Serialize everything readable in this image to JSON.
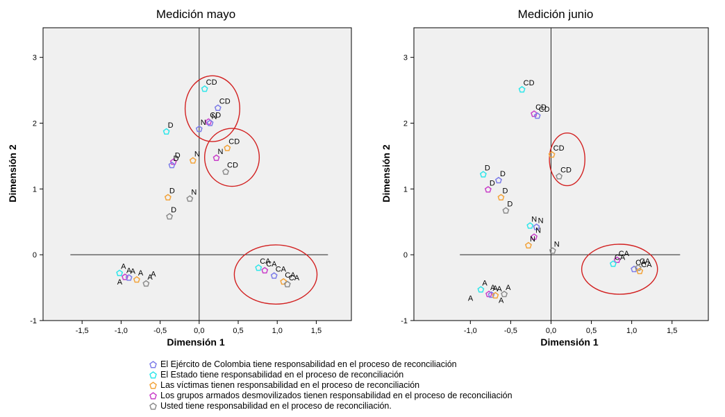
{
  "colors": {
    "ejercito": "#7c7ce8",
    "estado": "#2ee6ea",
    "victimas": "#f2a33a",
    "grupos": "#c93fc9",
    "usted": "#8c8c8c",
    "circle": "#d22020",
    "panel_bg": "#f0f0f0"
  },
  "legend": [
    {
      "key": "ejercito",
      "label": "El Ejército de Colombia tiene responsabilidad en el proceso de reconciliación"
    },
    {
      "key": "estado",
      "label": "El Estado tiene responsabilidad en el proceso de reconciliación"
    },
    {
      "key": "victimas",
      "label": "Las víctimas tienen responsabilidad en el proceso de reconciliación"
    },
    {
      "key": "grupos",
      "label": "Los grupos armados desmovilizados tienen responsabilidad en el proceso de reconciliación"
    },
    {
      "key": "usted",
      "label": "Usted tiene responsabilidad en el proceso de reconciliación."
    }
  ],
  "chart_data": [
    {
      "type": "scatter",
      "title": "Medición mayo",
      "xlabel": "Dimensión 1",
      "ylabel": "Dimensión 2",
      "xlim": [
        -2.0,
        1.95
      ],
      "ylim": [
        -1,
        3.45
      ],
      "x_ticks": [
        -1.5,
        -1.0,
        -0.5,
        0.0,
        0.5,
        1.0,
        1.5
      ],
      "x_tick_labels": [
        "-1,5",
        "-1,0",
        "-0,5",
        "0,0",
        "0,5",
        "1,0",
        "1,5"
      ],
      "y_ticks": [
        -1,
        0,
        1,
        2,
        3
      ],
      "y_tick_labels": [
        "-1",
        "0",
        "1",
        "2",
        "3"
      ],
      "hline_x_range": [
        -1.65,
        1.65
      ],
      "points": [
        {
          "series": "estado",
          "x": 0.07,
          "y": 2.52,
          "label": "CD"
        },
        {
          "series": "ejercito",
          "x": 0.24,
          "y": 2.23,
          "label": "CD"
        },
        {
          "series": "grupos",
          "x": 0.12,
          "y": 2.02,
          "label": "CD"
        },
        {
          "series": "ejercito",
          "x": 0.14,
          "y": 2.0,
          "label": "N"
        },
        {
          "series": "ejercito",
          "x": 0.0,
          "y": 1.91,
          "label": "N"
        },
        {
          "series": "estado",
          "x": -0.42,
          "y": 1.87,
          "label": "D"
        },
        {
          "series": "victimas",
          "x": 0.36,
          "y": 1.62,
          "label": "CD"
        },
        {
          "series": "grupos",
          "x": 0.22,
          "y": 1.47,
          "label": "N"
        },
        {
          "series": "usted",
          "x": 0.34,
          "y": 1.26,
          "label": "CD"
        },
        {
          "series": "victimas",
          "x": -0.08,
          "y": 1.43,
          "label": "N"
        },
        {
          "series": "grupos",
          "x": -0.33,
          "y": 1.41,
          "label": "D"
        },
        {
          "series": "ejercito",
          "x": -0.35,
          "y": 1.36,
          "label": "D"
        },
        {
          "series": "victimas",
          "x": -0.4,
          "y": 0.87,
          "label": "D"
        },
        {
          "series": "usted",
          "x": -0.12,
          "y": 0.85,
          "label": "N"
        },
        {
          "series": "usted",
          "x": -0.38,
          "y": 0.58,
          "label": "D"
        },
        {
          "series": "estado",
          "x": -1.02,
          "y": -0.28,
          "label": "A"
        },
        {
          "series": "grupos",
          "x": -0.95,
          "y": -0.34,
          "label": "A"
        },
        {
          "series": "ejercito",
          "x": -0.9,
          "y": -0.35,
          "label": "A"
        },
        {
          "series": "victimas",
          "x": -0.8,
          "y": -0.38,
          "label": "A"
        },
        {
          "series": "usted",
          "x": -0.68,
          "y": -0.44,
          "label": "A"
        },
        {
          "series": "estado",
          "x": 0.76,
          "y": -0.2,
          "label": "CA"
        },
        {
          "series": "grupos",
          "x": 0.84,
          "y": -0.24,
          "label": "CA"
        },
        {
          "series": "ejercito",
          "x": 0.96,
          "y": -0.32,
          "label": "CA"
        },
        {
          "series": "victimas",
          "x": 1.08,
          "y": -0.41,
          "label": "CA"
        },
        {
          "series": "usted",
          "x": 1.13,
          "y": -0.45,
          "label": "CA"
        }
      ],
      "extra_labels": [
        {
          "text": "A",
          "x": -1.05,
          "y": -0.45
        },
        {
          "text": "A",
          "x": -0.62,
          "y": -0.33
        }
      ],
      "circles": [
        {
          "cx": 0.17,
          "cy": 2.22,
          "rx": 0.35,
          "ry": 0.5
        },
        {
          "cx": 0.42,
          "cy": 1.48,
          "rx": 0.35,
          "ry": 0.44
        },
        {
          "cx": 0.98,
          "cy": -0.3,
          "rx": 0.53,
          "ry": 0.45
        }
      ]
    },
    {
      "type": "scatter",
      "title": "Medición junio",
      "xlabel": "Dimensión 1",
      "ylabel": "Dimensión 2",
      "xlim": [
        -1.7,
        1.95
      ],
      "ylim": [
        -1,
        3.45
      ],
      "x_ticks": [
        -1.0,
        -0.5,
        0.0,
        0.5,
        1.0,
        1.5
      ],
      "x_tick_labels": [
        "-1,0",
        "-0,5",
        "0,0",
        "0,5",
        "1,0",
        "1,5"
      ],
      "y_ticks": [
        -1,
        0,
        1,
        2,
        3
      ],
      "y_tick_labels": [
        "-1",
        "0",
        "1",
        "2",
        "3"
      ],
      "hline_x_range": [
        -1.13,
        1.6
      ],
      "points": [
        {
          "series": "estado",
          "x": -0.36,
          "y": 2.51,
          "label": "CD"
        },
        {
          "series": "grupos",
          "x": -0.21,
          "y": 2.14,
          "label": "CD"
        },
        {
          "series": "ejercito",
          "x": -0.17,
          "y": 2.11,
          "label": "CD"
        },
        {
          "series": "victimas",
          "x": 0.01,
          "y": 1.52,
          "label": "CD"
        },
        {
          "series": "usted",
          "x": 0.1,
          "y": 1.19,
          "label": "CD"
        },
        {
          "series": "estado",
          "x": -0.84,
          "y": 1.22,
          "label": "D"
        },
        {
          "series": "ejercito",
          "x": -0.65,
          "y": 1.13,
          "label": "D"
        },
        {
          "series": "grupos",
          "x": -0.78,
          "y": 0.99,
          "label": "D"
        },
        {
          "series": "victimas",
          "x": -0.62,
          "y": 0.87,
          "label": "D"
        },
        {
          "series": "usted",
          "x": -0.56,
          "y": 0.67,
          "label": "D"
        },
        {
          "series": "estado",
          "x": -0.26,
          "y": 0.44,
          "label": "N"
        },
        {
          "series": "ejercito",
          "x": -0.18,
          "y": 0.42,
          "label": "N"
        },
        {
          "series": "grupos",
          "x": -0.21,
          "y": 0.27,
          "label": "N"
        },
        {
          "series": "victimas",
          "x": -0.28,
          "y": 0.14,
          "label": "N"
        },
        {
          "series": "usted",
          "x": 0.02,
          "y": 0.06,
          "label": "N"
        },
        {
          "series": "estado",
          "x": -0.87,
          "y": -0.53,
          "label": "A"
        },
        {
          "series": "grupos",
          "x": -0.77,
          "y": -0.6,
          "label": "A"
        },
        {
          "series": "ejercito",
          "x": -0.74,
          "y": -0.61,
          "label": "A"
        },
        {
          "series": "victimas",
          "x": -0.69,
          "y": -0.62,
          "label": "A"
        },
        {
          "series": "usted",
          "x": -0.58,
          "y": -0.6,
          "label": "A"
        },
        {
          "series": "grupos",
          "x": 0.82,
          "y": -0.08,
          "label": "CA"
        },
        {
          "series": "estado",
          "x": 0.77,
          "y": -0.14,
          "label": "CA"
        },
        {
          "series": "ejercito",
          "x": 1.03,
          "y": -0.22,
          "label": "CA"
        },
        {
          "series": "usted",
          "x": 1.08,
          "y": -0.2,
          "label": "CA"
        },
        {
          "series": "victimas",
          "x": 1.1,
          "y": -0.25,
          "label": "CA"
        }
      ],
      "extra_labels": [
        {
          "text": "A",
          "x": -1.03,
          "y": -0.7
        },
        {
          "text": "A",
          "x": -0.65,
          "y": -0.73
        }
      ],
      "circles": [
        {
          "cx": 0.2,
          "cy": 1.45,
          "rx": 0.22,
          "ry": 0.4
        },
        {
          "cx": 0.85,
          "cy": -0.22,
          "rx": 0.47,
          "ry": 0.38
        }
      ]
    }
  ]
}
